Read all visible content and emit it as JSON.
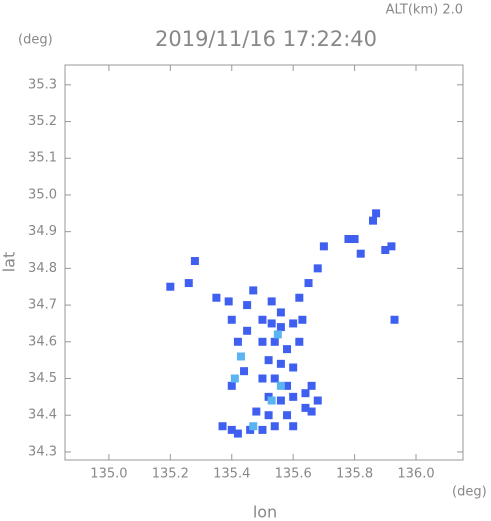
{
  "chart_data": {
    "type": "scatter",
    "title": "2019/11/16 17:22:40",
    "subtitle": "ALT(km) 2.0",
    "x_label": "lon",
    "y_label": "lat",
    "x_unit": "(deg)",
    "y_unit": "(deg)",
    "xlim": [
      134.857,
      136.153
    ],
    "ylim": [
      34.278,
      35.354
    ],
    "xticks": [
      {
        "value": 135,
        "label": "135.0"
      },
      135.2,
      135.4,
      135.6,
      135.8,
      {
        "value": 136,
        "label": "136.0"
      }
    ],
    "yticks": [
      34.3,
      34.4,
      34.5,
      34.6,
      34.7,
      34.8,
      34.9,
      {
        "value": 35,
        "label": "35.0"
      },
      35.1,
      35.2,
      35.3
    ],
    "series": [
      {
        "color": "#3f5ff0",
        "x": [
          135.28,
          135.26,
          135.2,
          135.35,
          135.39,
          135.45,
          135.53,
          135.62,
          135.65,
          135.68,
          135.7,
          135.78,
          135.8,
          135.86,
          135.87,
          135.92,
          135.9,
          135.82,
          135.93,
          135.4,
          135.42,
          135.45,
          135.5,
          135.53,
          135.56,
          135.6,
          135.63,
          135.5,
          135.54,
          135.58,
          135.62,
          135.52,
          135.56,
          135.6,
          135.5,
          135.54,
          135.58,
          135.52,
          135.56,
          135.6,
          135.64,
          135.66,
          135.68,
          135.64,
          135.58,
          135.52,
          135.48,
          135.54,
          135.5,
          135.46,
          135.42,
          135.4,
          135.37,
          135.6,
          135.4,
          135.44,
          135.66,
          135.56,
          135.47
        ],
        "values": [
          34.82,
          34.76,
          34.75,
          34.72,
          34.71,
          34.7,
          34.71,
          34.72,
          34.76,
          34.8,
          34.86,
          34.88,
          34.88,
          34.93,
          34.95,
          34.86,
          34.85,
          34.84,
          34.66,
          34.66,
          34.6,
          34.63,
          34.66,
          34.65,
          34.64,
          34.65,
          34.66,
          34.6,
          34.6,
          34.58,
          34.6,
          34.55,
          34.54,
          34.53,
          34.5,
          34.5,
          34.48,
          34.45,
          34.44,
          34.45,
          34.46,
          34.48,
          34.44,
          34.42,
          34.4,
          34.4,
          34.41,
          34.37,
          34.36,
          34.36,
          34.35,
          34.36,
          34.37,
          34.37,
          34.48,
          34.52,
          34.41,
          34.68,
          34.74
        ]
      },
      {
        "color": "#5ab4f2",
        "x": [
          135.41,
          135.55,
          135.56,
          135.53,
          135.47,
          135.43
        ],
        "values": [
          34.5,
          34.62,
          34.48,
          34.44,
          34.37,
          34.56
        ]
      }
    ]
  }
}
